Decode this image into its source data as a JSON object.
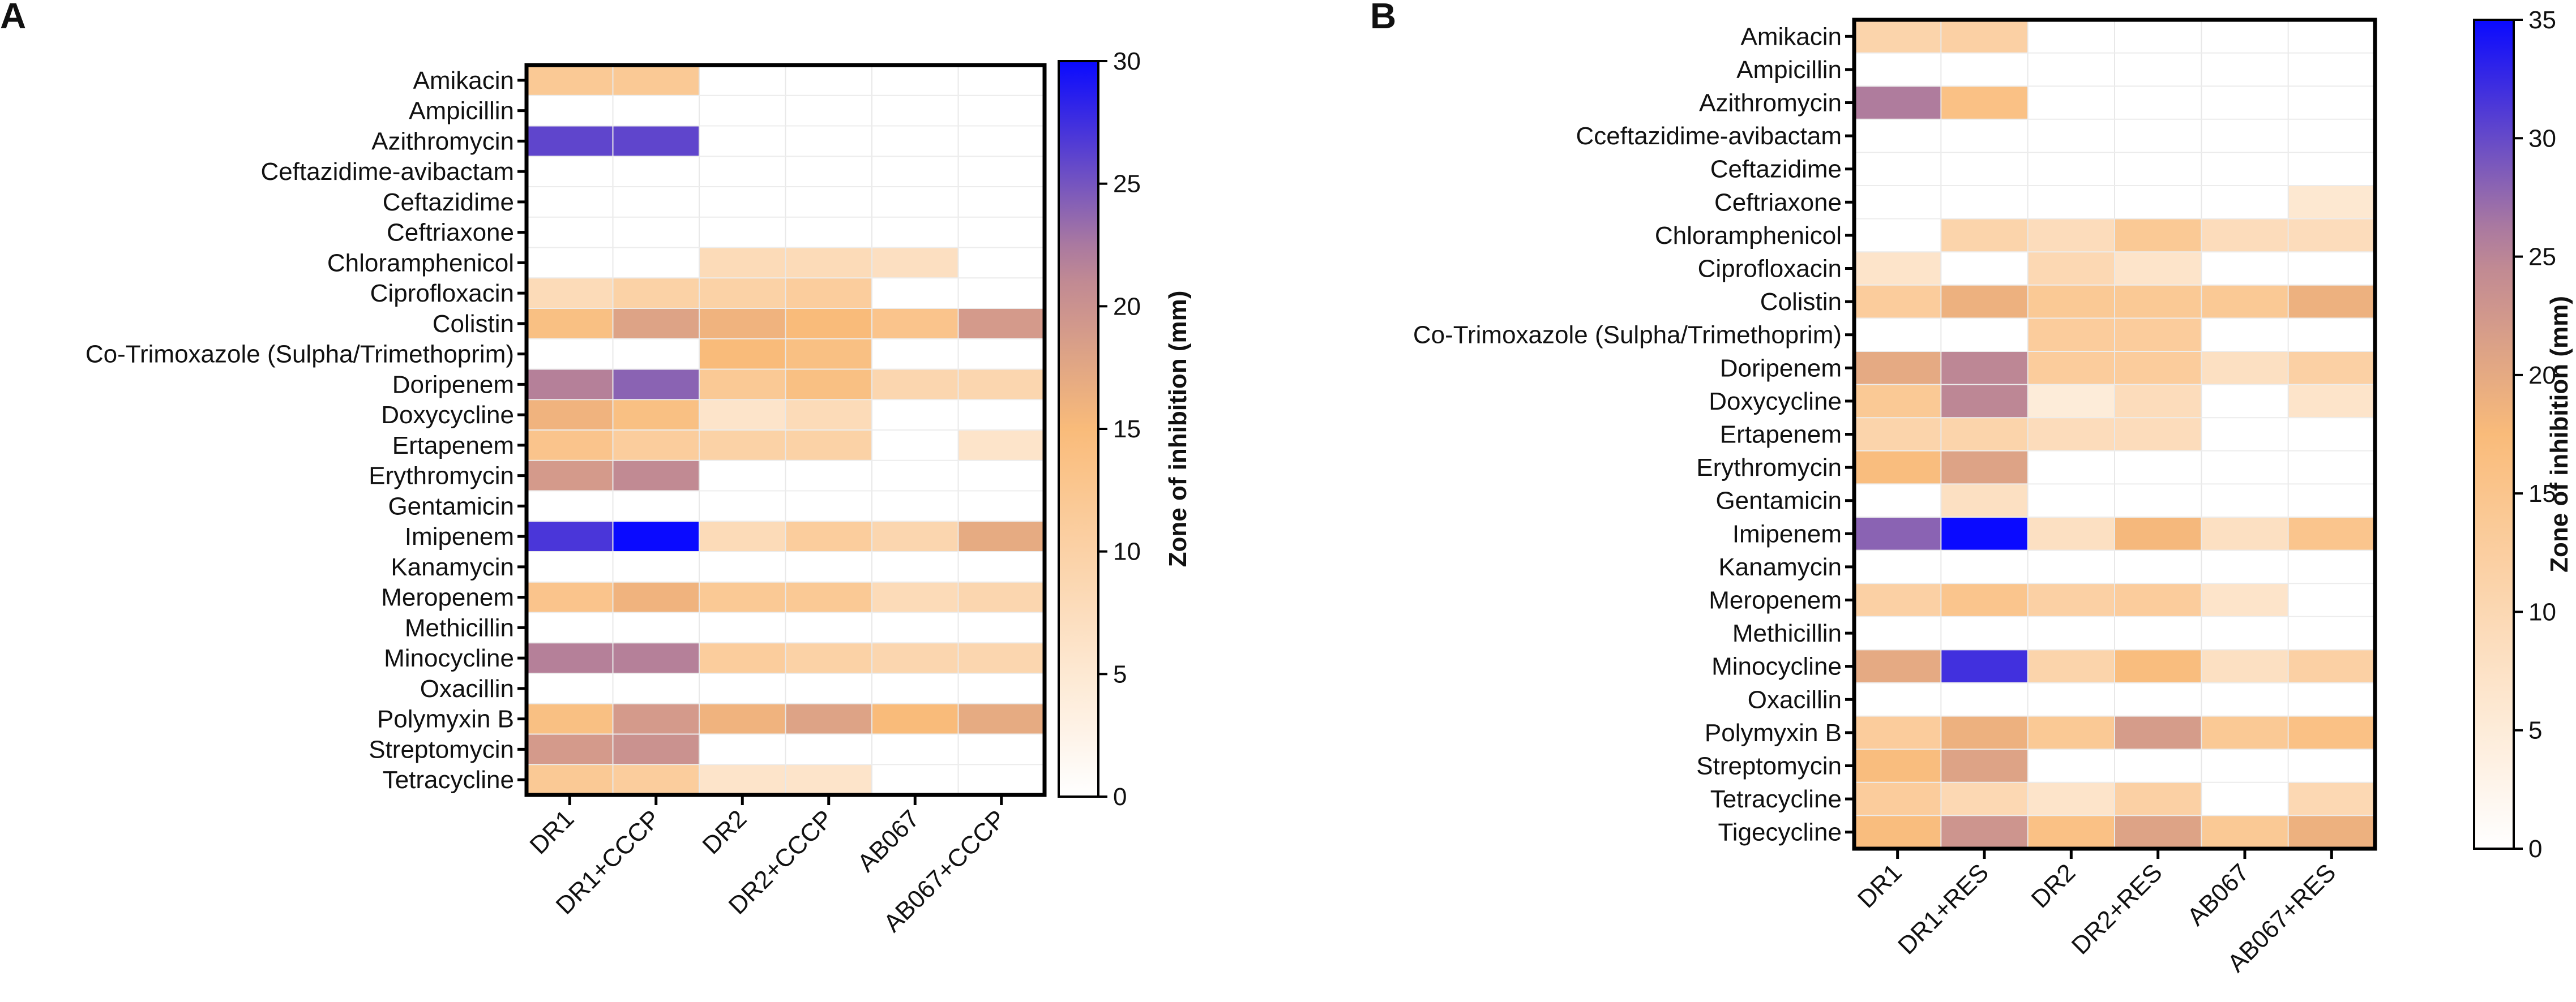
{
  "colormap": {
    "low": "#ffffff",
    "mid": "#f9bb7a",
    "high": "#0a0aff"
  },
  "chart_data": [
    {
      "type": "heatmap",
      "panel": "A",
      "title": "",
      "colorbar_label": "Zone of inhibition (mm)",
      "colorbar_range": [
        0,
        30
      ],
      "colorbar_ticks": [
        "0",
        "5",
        "10",
        "15",
        "20",
        "25",
        "30"
      ],
      "columns": [
        "DR1",
        "DR1+CCCP",
        "DR2",
        "DR2+CCCP",
        "AB067",
        "AB067+CCCP"
      ],
      "rows": [
        "Amikacin",
        "Ampicillin",
        "Azithromycin",
        "Ceftazidime-avibactam",
        "Ceftazidime",
        "Ceftriaxone",
        "Chloramphenicol",
        "Ciprofloxacin",
        "Colistin",
        "Co-Trimoxazole (Sulpha/Trimethoprim)",
        "Doripenem",
        "Doxycycline",
        "Ertapenem",
        "Erythromycin",
        "Gentamicin",
        "Imipenem",
        "Kanamycin",
        "Meropenem",
        "Methicillin",
        "Minocycline",
        "Oxacillin",
        "Polymyxin B",
        "Streptomycin",
        "Tetracycline"
      ],
      "values": [
        [
          12,
          12,
          0,
          0,
          0,
          0
        ],
        [
          0,
          0,
          0,
          0,
          0,
          0
        ],
        [
          26,
          26,
          0,
          0,
          0,
          0
        ],
        [
          0,
          0,
          0,
          0,
          0,
          0
        ],
        [
          0,
          0,
          0,
          0,
          0,
          0
        ],
        [
          0,
          0,
          0,
          0,
          0,
          0
        ],
        [
          0,
          0,
          8,
          8,
          7,
          0
        ],
        [
          8,
          10,
          10,
          11,
          0,
          0
        ],
        [
          14,
          18,
          16,
          15,
          13,
          19
        ],
        [
          0,
          0,
          15,
          14,
          0,
          0
        ],
        [
          22,
          24,
          12,
          14,
          9,
          9
        ],
        [
          16,
          14,
          6,
          8,
          0,
          0
        ],
        [
          13,
          11,
          10,
          10,
          0,
          6
        ],
        [
          19,
          21,
          0,
          0,
          0,
          0
        ],
        [
          0,
          0,
          0,
          0,
          0,
          0
        ],
        [
          27,
          30,
          8,
          11,
          9,
          17
        ],
        [
          0,
          0,
          0,
          0,
          0,
          0
        ],
        [
          13,
          16,
          12,
          12,
          8,
          9
        ],
        [
          0,
          0,
          0,
          0,
          0,
          0
        ],
        [
          22,
          22,
          11,
          10,
          9,
          9
        ],
        [
          0,
          0,
          0,
          0,
          0,
          0
        ],
        [
          14,
          19,
          16,
          18,
          15,
          17
        ],
        [
          19,
          20,
          0,
          0,
          0,
          0
        ],
        [
          12,
          11,
          6,
          6,
          0,
          0
        ]
      ]
    },
    {
      "type": "heatmap",
      "panel": "B",
      "title": "",
      "colorbar_label": "Zone of inhibition (mm)",
      "colorbar_range": [
        0,
        35
      ],
      "colorbar_ticks": [
        "0",
        "5",
        "10",
        "15",
        "20",
        "25",
        "30",
        "35"
      ],
      "columns": [
        "DR1",
        "DR1+RES",
        "DR2",
        "DR2+RES",
        "AB067",
        "AB067+RES"
      ],
      "rows": [
        "Amikacin",
        "Ampicillin",
        "Azithromycin",
        "Cceftazidime-avibactam",
        "Ceftazidime",
        "Ceftriaxone",
        "Chloramphenicol",
        "Ciprofloxacin",
        "Colistin",
        "Co-Trimoxazole (Sulpha/Trimethoprim)",
        "Doripenem",
        "Doxycycline",
        "Ertapenem",
        "Erythromycin",
        "Gentamicin",
        "Imipenem",
        "Kanamycin",
        "Meropenem",
        "Methicillin",
        "Minocycline",
        "Oxacillin",
        "Polymyxin B",
        "Streptomycin",
        "Tetracycline",
        "Tigecycline"
      ],
      "values": [
        [
          11,
          12,
          0,
          0,
          0,
          0
        ],
        [
          0,
          0,
          0,
          0,
          0,
          0
        ],
        [
          26,
          16,
          0,
          0,
          0,
          0
        ],
        [
          0,
          0,
          0,
          0,
          0,
          0
        ],
        [
          0,
          0,
          0,
          0,
          0,
          0
        ],
        [
          0,
          0,
          0,
          0,
          0,
          6
        ],
        [
          0,
          11,
          9,
          14,
          9,
          9
        ],
        [
          7,
          0,
          10,
          7,
          0,
          0
        ],
        [
          13,
          19,
          14,
          14,
          14,
          19
        ],
        [
          0,
          0,
          13,
          13,
          0,
          0
        ],
        [
          20,
          25,
          13,
          13,
          8,
          12
        ],
        [
          14,
          25,
          5,
          9,
          0,
          7
        ],
        [
          11,
          11,
          9,
          9,
          0,
          0
        ],
        [
          17,
          21,
          0,
          0,
          0,
          0
        ],
        [
          0,
          8,
          0,
          0,
          0,
          0
        ],
        [
          28,
          35,
          8,
          18,
          8,
          15
        ],
        [
          0,
          0,
          0,
          0,
          0,
          0
        ],
        [
          12,
          15,
          12,
          13,
          7,
          0
        ],
        [
          0,
          0,
          0,
          0,
          0,
          0
        ],
        [
          20,
          32,
          11,
          17,
          8,
          12
        ],
        [
          0,
          0,
          0,
          0,
          0,
          0
        ],
        [
          13,
          19,
          14,
          22,
          14,
          16
        ],
        [
          17,
          21,
          0,
          0,
          0,
          0
        ],
        [
          13,
          10,
          7,
          12,
          0,
          10
        ],
        [
          17,
          23,
          16,
          21,
          14,
          19
        ]
      ]
    }
  ]
}
